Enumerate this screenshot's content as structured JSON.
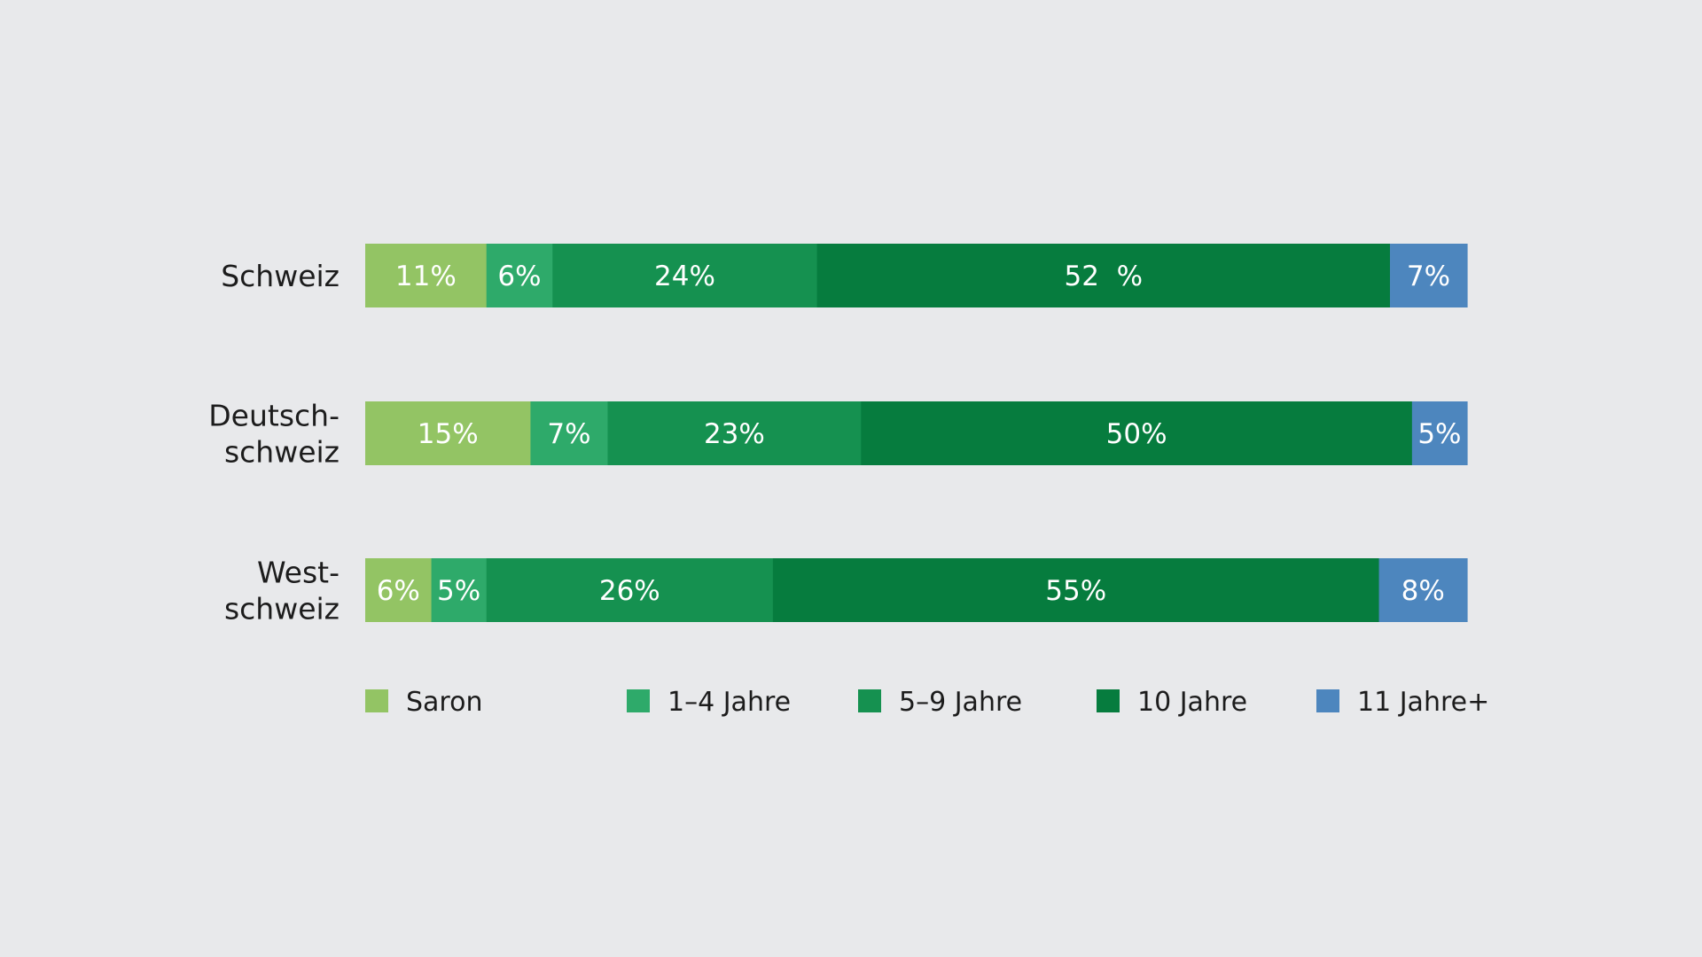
{
  "chart_data": {
    "type": "bar",
    "orientation": "horizontal",
    "stacked": true,
    "normalized": true,
    "categories": [
      [
        "Schweiz"
      ],
      [
        "Deutsch-",
        "schweiz"
      ],
      [
        "West-",
        "schweiz"
      ]
    ],
    "series": [
      {
        "name": "Saron",
        "color": "#93c464",
        "values": [
          11,
          15,
          6
        ],
        "labels": [
          "11%",
          "15%",
          "6%"
        ]
      },
      {
        "name": "1–4 Jahre",
        "color": "#2eaa6a",
        "values": [
          6,
          7,
          5
        ],
        "labels": [
          "6%",
          "7%",
          "5%"
        ]
      },
      {
        "name": "5–9 Jahre",
        "color": "#159150",
        "values": [
          24,
          23,
          26
        ],
        "labels": [
          "24%",
          "23%",
          "26%"
        ]
      },
      {
        "name": "10 Jahre",
        "color": "#067c3e",
        "values": [
          52,
          50,
          55
        ],
        "labels": [
          "52  %",
          "50%",
          "55%"
        ]
      },
      {
        "name": "11 Jahre+",
        "color": "#4d86be",
        "values": [
          7,
          5,
          8
        ],
        "labels": [
          "7%",
          "5%",
          "8%"
        ]
      }
    ],
    "title": "",
    "xlabel": "",
    "ylabel": "",
    "xlim": [
      0,
      100
    ],
    "grid": false,
    "legend_position": "bottom"
  }
}
